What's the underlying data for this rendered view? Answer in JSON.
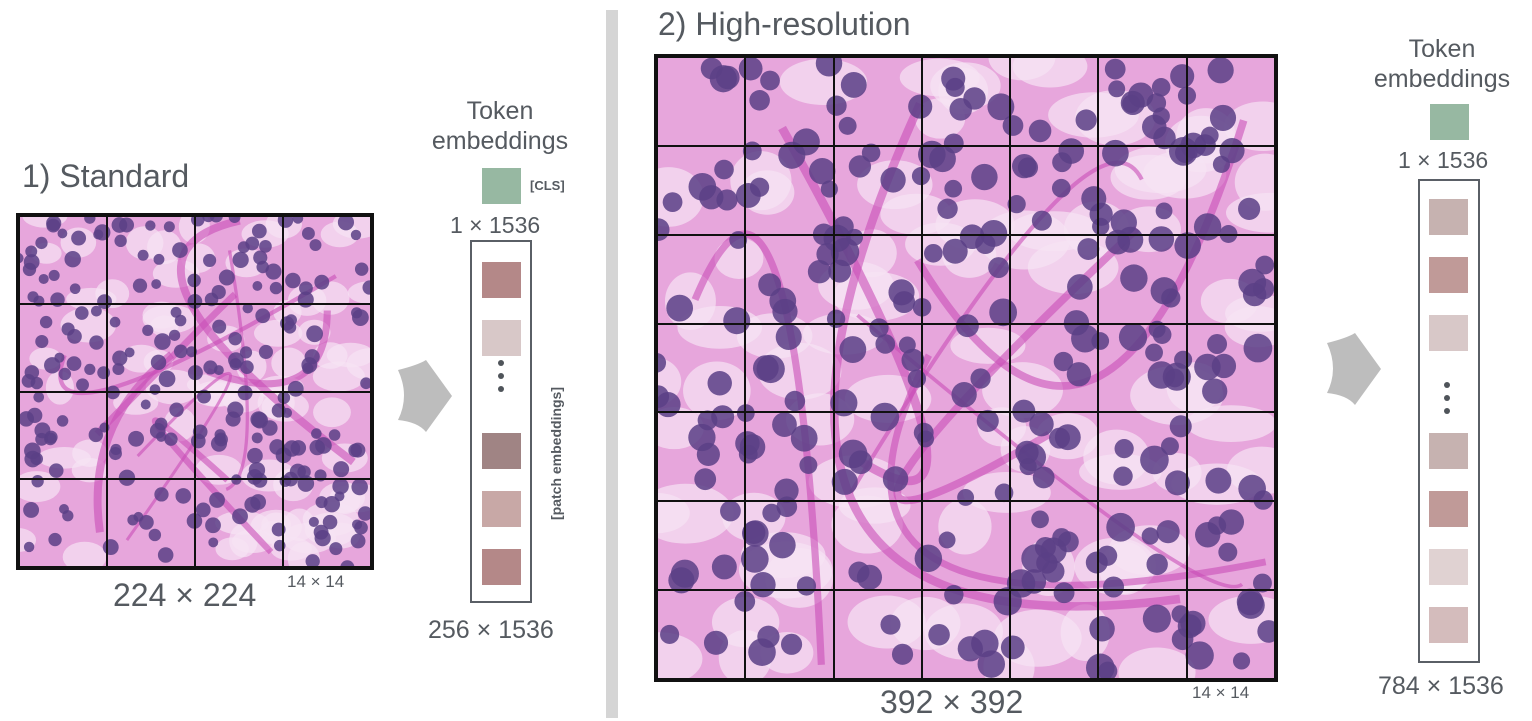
{
  "standard": {
    "title": "1) Standard",
    "image_size": "224 × 224",
    "patch_size": "14 × 14",
    "grid": 4,
    "token_label": "Token embeddings",
    "cls_tag": "[CLS]",
    "cls_dim": "1 × 1536",
    "patch_tag": "[patch embeddings]",
    "patch_dim": "256 × 1536",
    "cls_color": "#97b8a2",
    "patch_colors_top": [
      "#b48888",
      "#d8c8c8"
    ],
    "patch_colors_bottom": [
      "#a08484",
      "#c8a8a6",
      "#b48888"
    ]
  },
  "highres": {
    "title": "2) High-resolution",
    "image_size": "392 × 392",
    "patch_size": "14 × 14",
    "grid": 7,
    "token_label": "Token embeddings",
    "cls_dim": "1 × 1536",
    "patch_dim": "784 × 1536",
    "cls_color": "#97b8a2",
    "patch_colors_top": [
      "#c6b2b0",
      "#c09a98",
      "#d8c8c8"
    ],
    "patch_colors_bottom": [
      "#c6b2b0",
      "#c09a98",
      "#e0d2d2",
      "#d4bcbc"
    ]
  },
  "colors": {
    "arrow": "#bdbdbd",
    "divider": "#d5d5d5",
    "tissue": "#e7a6dc",
    "nucleus": "#5b3f86"
  }
}
